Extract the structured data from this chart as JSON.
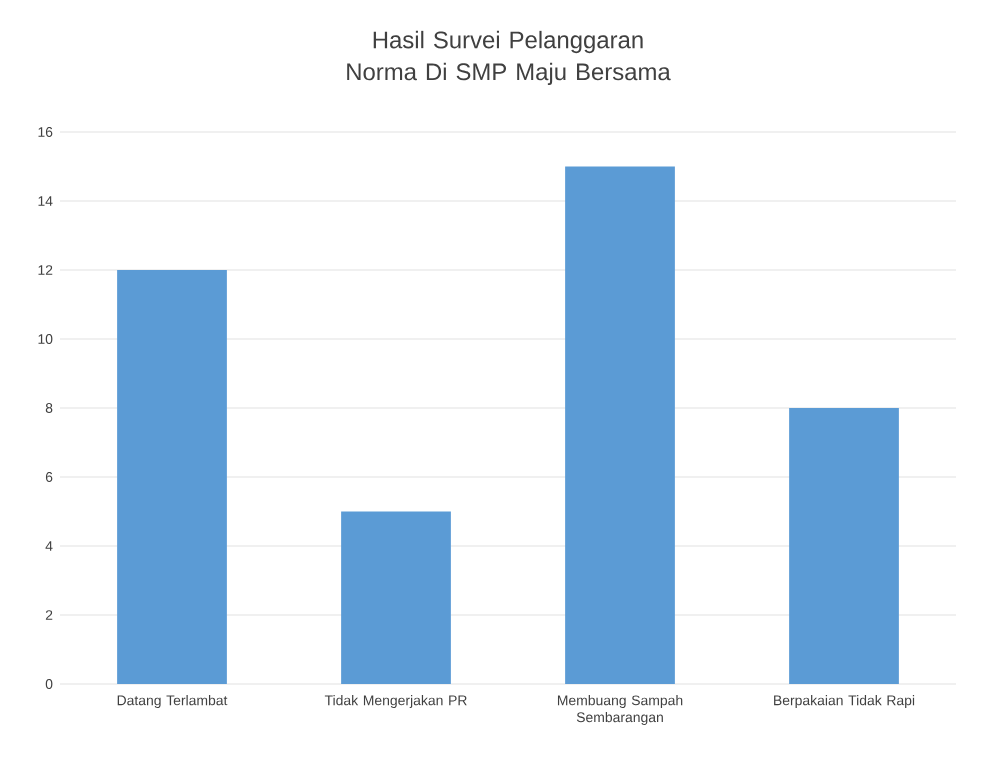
{
  "chart_data": {
    "type": "bar",
    "title": "Hasil Survei Pelanggaran Norma Di SMP Maju Bersama",
    "categories": [
      "Datang Terlambat",
      "Tidak Mengerjakan PR",
      "Membuang Sampah Sembarangan",
      "Berpakaian Tidak Rapi"
    ],
    "values": [
      12,
      5,
      15,
      8
    ],
    "color": "#5b9bd5",
    "ylim": [
      0,
      16
    ],
    "yticks": [
      0,
      2,
      4,
      6,
      8,
      10,
      12,
      14,
      16
    ],
    "grid": "y"
  }
}
